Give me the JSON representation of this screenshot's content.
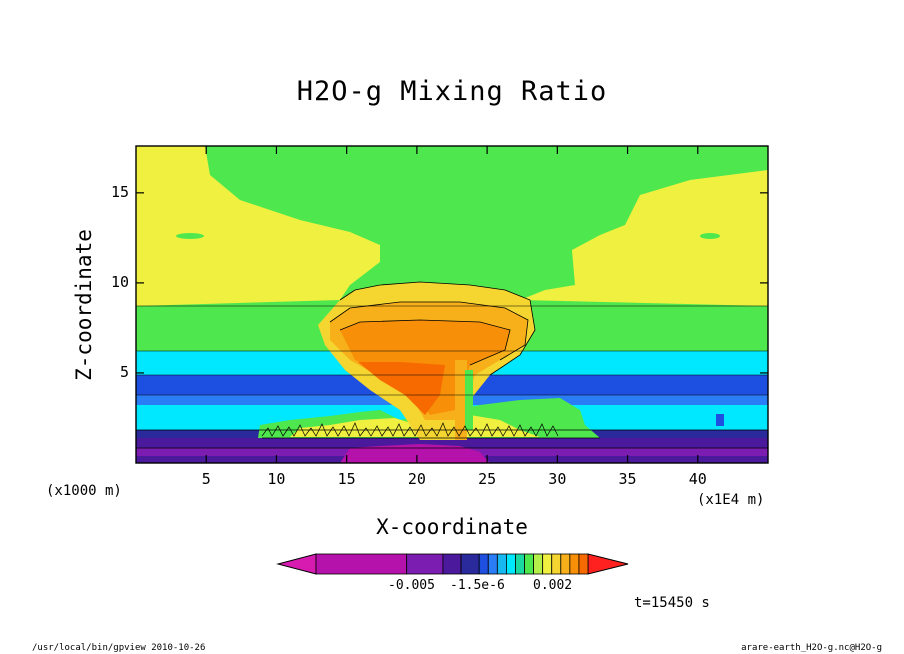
{
  "chart_data": {
    "type": "contour",
    "title": "H2O-g Mixing Ratio",
    "xlabel": "X-coordinate",
    "ylabel": "Z-coordinate",
    "x_unit_label": "(x1000 m)",
    "x_scale_label": "(x1E4 m)",
    "xlim": [
      0,
      45
    ],
    "ylim": [
      0,
      17.6
    ],
    "x_ticks": [
      5,
      10,
      15,
      20,
      25,
      30,
      35,
      40
    ],
    "y_ticks": [
      5,
      10,
      15
    ],
    "colorbar": {
      "colors": [
        "#d81bb0",
        "#b412aa",
        "#7a1db0",
        "#4b1a9c",
        "#2a2a9c",
        "#1d4fe0",
        "#2a7df5",
        "#17b7f0",
        "#00e8ff",
        "#1ad9a0",
        "#4ee84e",
        "#b5f04a",
        "#f0f040",
        "#f5d630",
        "#f7b01a",
        "#f78f08",
        "#f76a00",
        "#ff2020"
      ],
      "labels": [
        "-0.005",
        "-1.5e-6",
        "0.002"
      ]
    },
    "time_label": "t=15450 s"
  },
  "footer": {
    "left": "/usr/local/bin/gpview  2010-10-26",
    "right": "arare-earth_H2O-g.nc@H2O-g"
  }
}
